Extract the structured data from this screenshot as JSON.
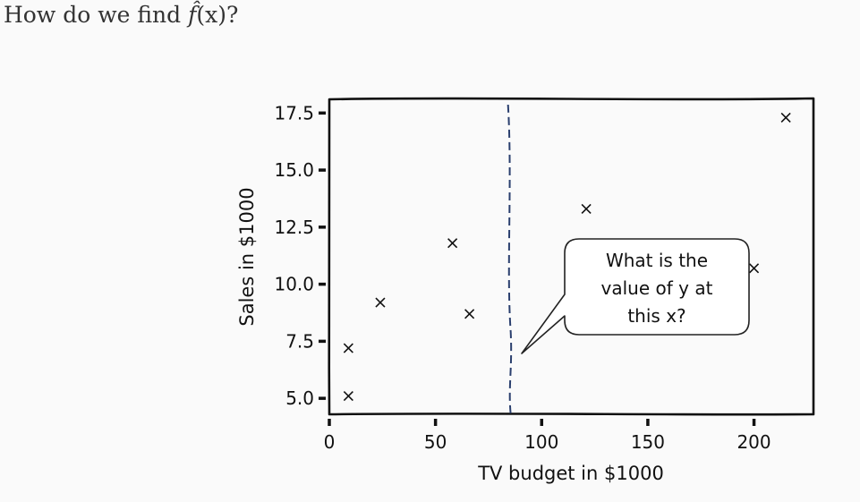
{
  "heading": {
    "prefix": "How do we find ",
    "f_hat": "f̂",
    "suffix": "(x)?"
  },
  "chart_data": {
    "type": "scatter",
    "xlabel": "TV budget in $1000",
    "ylabel": "Sales in $1000",
    "xlim": [
      0,
      228
    ],
    "ylim": [
      4.3,
      18.1
    ],
    "xticks": [
      0,
      50,
      100,
      150,
      200
    ],
    "xtick_labels": [
      "0",
      "50",
      "100",
      "150",
      "200"
    ],
    "yticks": [
      5.0,
      7.5,
      10.0,
      12.5,
      15.0,
      17.5
    ],
    "ytick_labels": [
      "5.0",
      "7.5",
      "10.0",
      "12.5",
      "15.0",
      "17.5"
    ],
    "marker": "x",
    "points": [
      {
        "x": 9,
        "y": 5.1
      },
      {
        "x": 9,
        "y": 7.2
      },
      {
        "x": 24,
        "y": 9.2
      },
      {
        "x": 58,
        "y": 11.8
      },
      {
        "x": 66,
        "y": 8.7
      },
      {
        "x": 121,
        "y": 13.3
      },
      {
        "x": 200,
        "y": 10.7
      },
      {
        "x": 215,
        "y": 17.3
      }
    ],
    "vline_x": 85,
    "annotation": {
      "lines": [
        "What is the",
        "value of y at",
        "this x?"
      ]
    },
    "grid": false,
    "style": "xkcd"
  }
}
